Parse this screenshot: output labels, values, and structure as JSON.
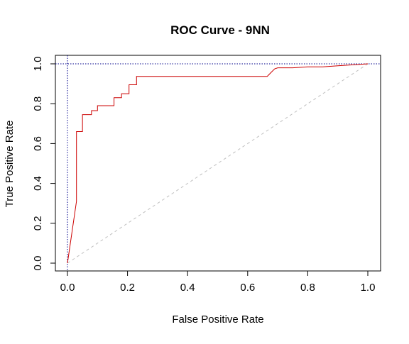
{
  "chart_data": {
    "type": "line",
    "title": "ROC Curve - 9NN",
    "xlabel": "False Positive Rate",
    "ylabel": "True Positive Rate",
    "xlim": [
      0,
      1
    ],
    "ylim": [
      0,
      1
    ],
    "xticks": [
      0.0,
      0.2,
      0.4,
      0.6,
      0.8,
      1.0
    ],
    "yticks": [
      0.0,
      0.2,
      0.4,
      0.6,
      0.8,
      1.0
    ],
    "xtick_labels": [
      "0.0",
      "0.2",
      "0.4",
      "0.6",
      "0.8",
      "1.0"
    ],
    "ytick_labels": [
      "0.0",
      "0.2",
      "0.4",
      "0.6",
      "0.8",
      "1.0"
    ],
    "grid": false,
    "colors": {
      "curve": "#cc0000",
      "diagonal": "#bfbfbf",
      "reference_lines": "#00008b",
      "axes": "#000000"
    },
    "series": [
      {
        "x": [
          0.0,
          0.0,
          0.03,
          0.03,
          0.05,
          0.05,
          0.08,
          0.08,
          0.1,
          0.1,
          0.155,
          0.155,
          0.18,
          0.18,
          0.205,
          0.205,
          0.23,
          0.23,
          0.665,
          0.68,
          0.69,
          0.7,
          0.75,
          0.8,
          0.85,
          0.9,
          0.95,
          1.0
        ],
        "y": [
          0.0,
          0.0,
          0.31,
          0.66,
          0.66,
          0.745,
          0.745,
          0.765,
          0.765,
          0.79,
          0.79,
          0.83,
          0.83,
          0.85,
          0.85,
          0.895,
          0.895,
          0.937,
          0.937,
          0.96,
          0.975,
          0.98,
          0.98,
          0.985,
          0.985,
          0.99,
          0.995,
          1.0
        ]
      }
    ],
    "reference_lines": {
      "vertical_x": 0.0,
      "horizontal_y": 1.0,
      "diagonal": [
        [
          0,
          0
        ],
        [
          1,
          1
        ]
      ]
    }
  }
}
